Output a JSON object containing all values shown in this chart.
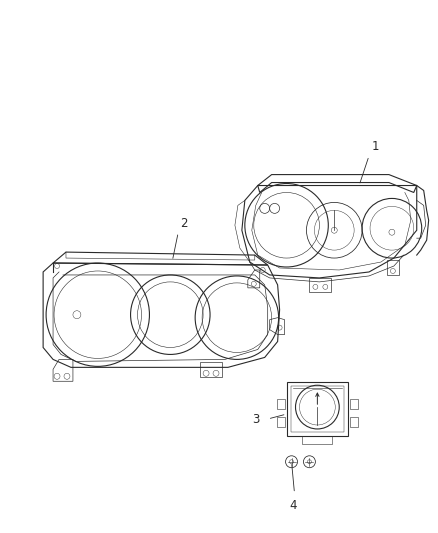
{
  "bg_color": "#ffffff",
  "line_color": "#2a2a2a",
  "label_color": "#2a2a2a",
  "label_fontsize": 8.5,
  "fig_width": 4.38,
  "fig_height": 5.33,
  "dpi": 100
}
